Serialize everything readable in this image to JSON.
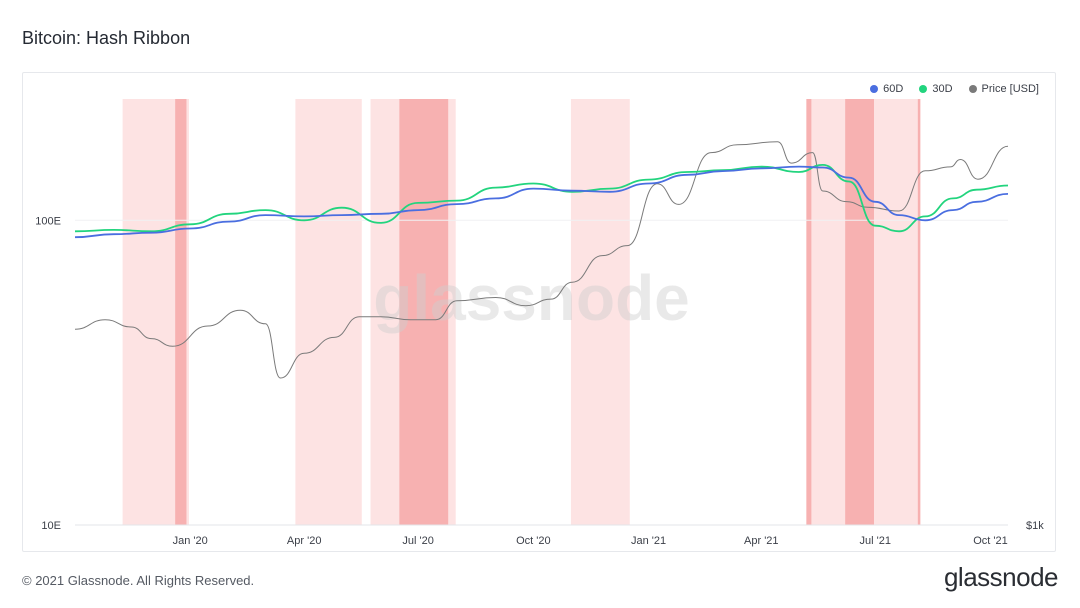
{
  "header": {
    "title": "Bitcoin: Hash Ribbon"
  },
  "footer": {
    "copyright": "© 2021 Glassnode. All Rights Reserved.",
    "logo": "glassnode"
  },
  "watermark": "glassnode",
  "colors": {
    "series_60d": "#4a6ee0",
    "series_30d": "#22d47e",
    "series_price": "#7a7a7a",
    "capitulation_light": "#fde3e3",
    "capitulation_dark": "#f7b1b1"
  },
  "chart_data": {
    "type": "line",
    "legend_placement": "top-right",
    "grid": false,
    "x_ticks": [
      "Jan '20",
      "Apr '20",
      "Jul '20",
      "Oct '20",
      "Jan '21",
      "Apr '21",
      "Jul '21",
      "Oct '21"
    ],
    "x_tick_dates": [
      "2020-01-01",
      "2020-04-01",
      "2020-07-01",
      "2020-10-01",
      "2021-01-01",
      "2021-04-01",
      "2021-07-01",
      "2021-10-01"
    ],
    "xlim": [
      "2019-10-01",
      "2021-10-15"
    ],
    "y_left": {
      "scale": "log",
      "ticks": [
        "10E",
        "100E"
      ],
      "tick_values": [
        10,
        100
      ],
      "ylim": [
        10,
        250
      ]
    },
    "y_right": {
      "scale": "log",
      "ticks": [
        "$1k"
      ],
      "tick_values": [
        1000
      ],
      "ylim": [
        1000,
        100000
      ]
    },
    "capitulation_periods": [
      {
        "start": "2019-11-08",
        "end": "2019-12-31",
        "type": "light"
      },
      {
        "start": "2019-12-20",
        "end": "2019-12-29",
        "type": "dark"
      },
      {
        "start": "2020-03-25",
        "end": "2020-05-17",
        "type": "light"
      },
      {
        "start": "2020-05-24",
        "end": "2020-07-31",
        "type": "light"
      },
      {
        "start": "2020-06-16",
        "end": "2020-07-25",
        "type": "dark"
      },
      {
        "start": "2020-10-31",
        "end": "2020-12-17",
        "type": "light"
      },
      {
        "start": "2021-05-07",
        "end": "2021-08-06",
        "type": "light"
      },
      {
        "start": "2021-05-07",
        "end": "2021-05-11",
        "type": "dark"
      },
      {
        "start": "2021-06-07",
        "end": "2021-06-30",
        "type": "dark"
      },
      {
        "start": "2021-08-04",
        "end": "2021-08-06",
        "type": "dark"
      }
    ],
    "series": [
      {
        "name": "60D",
        "axis": "left",
        "x": [
          "2019-10-01",
          "2019-11-01",
          "2019-12-01",
          "2020-01-01",
          "2020-02-01",
          "2020-03-01",
          "2020-04-01",
          "2020-05-01",
          "2020-06-01",
          "2020-07-01",
          "2020-08-01",
          "2020-09-01",
          "2020-10-01",
          "2020-11-01",
          "2020-12-01",
          "2021-01-01",
          "2021-02-01",
          "2021-03-01",
          "2021-04-01",
          "2021-05-01",
          "2021-05-20",
          "2021-06-10",
          "2021-07-01",
          "2021-07-20",
          "2021-08-10",
          "2021-09-01",
          "2021-09-20",
          "2021-10-15"
        ],
        "values": [
          88,
          90,
          91,
          94,
          99,
          104,
          103,
          104,
          105,
          108,
          113,
          118,
          127,
          125,
          124,
          132,
          141,
          145,
          148,
          150,
          149,
          138,
          115,
          104,
          100,
          108,
          115,
          122
        ]
      },
      {
        "name": "30D",
        "axis": "left",
        "x": [
          "2019-10-01",
          "2019-11-01",
          "2019-12-01",
          "2020-01-01",
          "2020-02-01",
          "2020-03-01",
          "2020-04-01",
          "2020-05-01",
          "2020-06-01",
          "2020-07-01",
          "2020-08-01",
          "2020-09-01",
          "2020-10-01",
          "2020-11-01",
          "2020-12-01",
          "2021-01-01",
          "2021-02-01",
          "2021-03-01",
          "2021-04-01",
          "2021-05-01",
          "2021-05-20",
          "2021-06-10",
          "2021-07-01",
          "2021-07-20",
          "2021-08-10",
          "2021-09-01",
          "2021-09-20",
          "2021-10-15"
        ],
        "values": [
          92,
          93,
          92,
          97,
          105,
          108,
          100,
          110,
          98,
          114,
          116,
          128,
          132,
          124,
          127,
          136,
          144,
          146,
          150,
          144,
          152,
          134,
          96,
          92,
          103,
          118,
          126,
          130
        ]
      },
      {
        "name": "Price [USD]",
        "axis": "right",
        "x": [
          "2019-10-01",
          "2019-10-25",
          "2019-11-15",
          "2019-12-01",
          "2019-12-18",
          "2020-01-15",
          "2020-02-10",
          "2020-03-01",
          "2020-03-13",
          "2020-04-01",
          "2020-04-25",
          "2020-05-15",
          "2020-06-01",
          "2020-06-25",
          "2020-07-15",
          "2020-08-01",
          "2020-09-01",
          "2020-09-25",
          "2020-10-15",
          "2020-11-01",
          "2020-11-25",
          "2020-12-15",
          "2021-01-08",
          "2021-01-25",
          "2021-02-20",
          "2021-03-13",
          "2021-04-14",
          "2021-04-25",
          "2021-05-12",
          "2021-05-20",
          "2021-06-08",
          "2021-06-25",
          "2021-07-20",
          "2021-08-10",
          "2021-08-30",
          "2021-09-07",
          "2021-09-21",
          "2021-10-15"
        ],
        "values": [
          8300,
          9200,
          8500,
          7500,
          6900,
          8600,
          10200,
          8800,
          4900,
          6400,
          7600,
          9500,
          9500,
          9200,
          9200,
          11300,
          11700,
          10700,
          11500,
          13800,
          18400,
          20500,
          40000,
          32000,
          56000,
          61000,
          63000,
          50000,
          56000,
          37000,
          33000,
          31000,
          29800,
          46000,
          48000,
          52000,
          42000,
          60000
        ]
      }
    ]
  }
}
